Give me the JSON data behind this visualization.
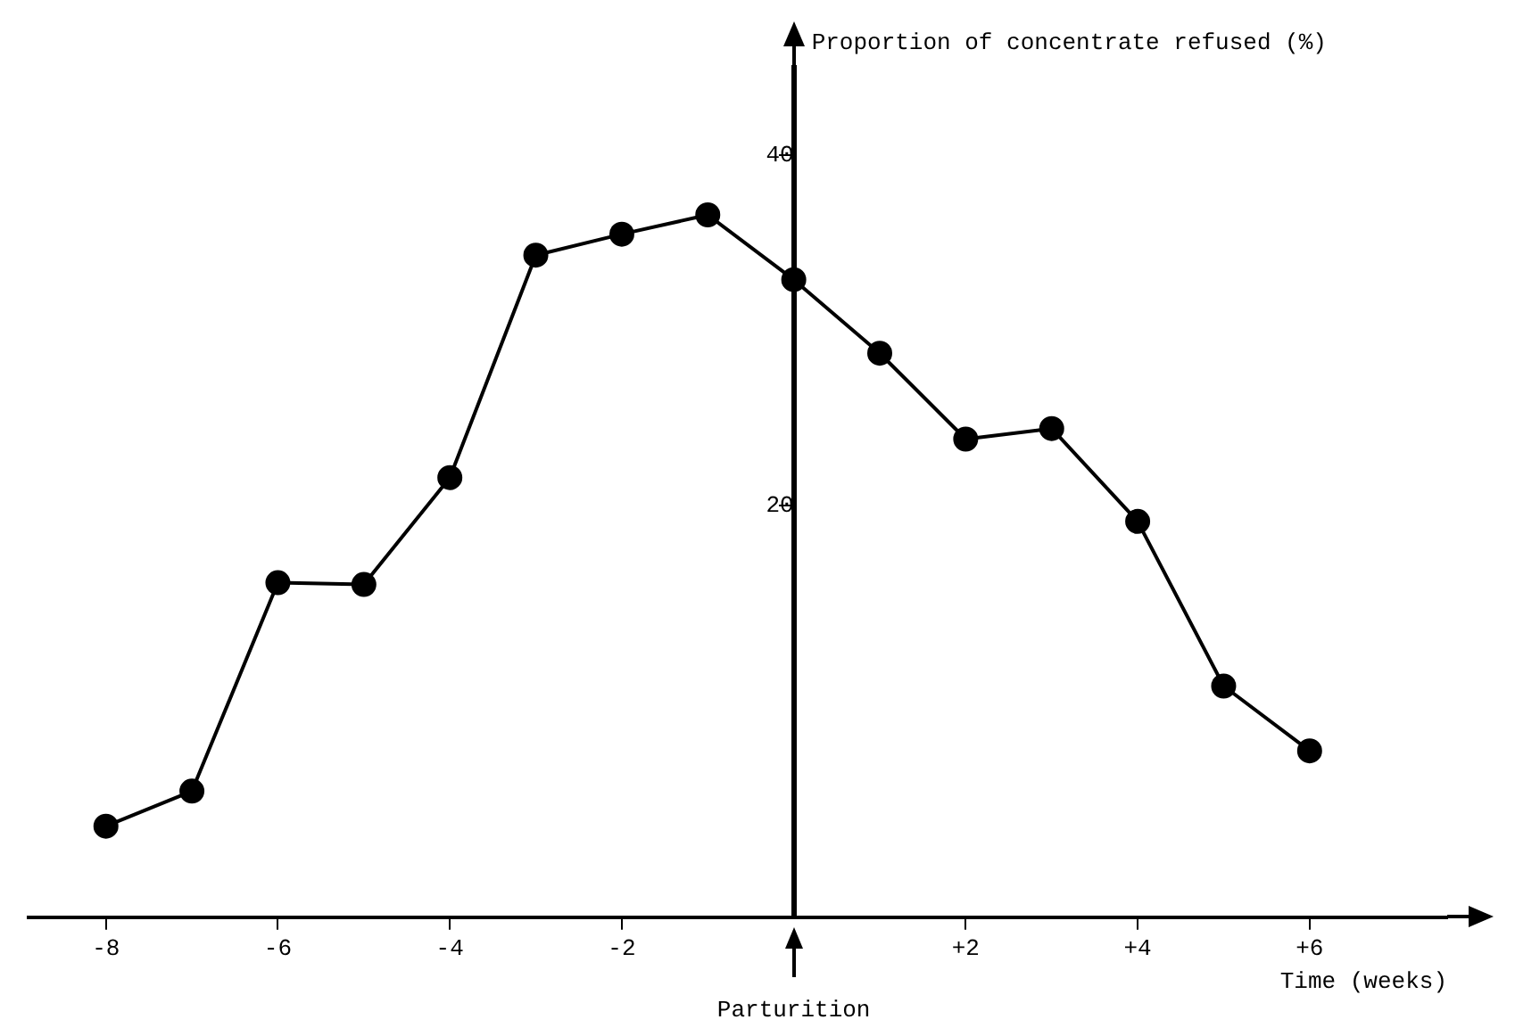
{
  "chart_data": {
    "type": "line",
    "xlabel": "Time (weeks)",
    "ylabel": "Proportion of concentrate refused (%)",
    "x": [
      -8,
      -7,
      -6,
      -5,
      -4,
      -3,
      -2,
      -1,
      0,
      1,
      2,
      3,
      4,
      5,
      6
    ],
    "series": [
      {
        "color": "#000000",
        "values": [
          1.7,
          3.7,
          15.6,
          15.5,
          21.6,
          34.3,
          35.5,
          36.6,
          32.9,
          28.7,
          23.8,
          24.4,
          19.1,
          9.7,
          6.0
        ]
      }
    ],
    "xlim": [
      -8.9,
      7.6
    ],
    "ylim": [
      -3.5,
      45
    ],
    "xticks": [
      -8,
      -6,
      -4,
      -2,
      {
        "value": 2,
        "label": "+2"
      },
      {
        "value": 4,
        "label": "+4"
      },
      {
        "value": 6,
        "label": "+6"
      }
    ],
    "yticks": [
      20,
      40
    ],
    "annotations": [
      "Parturition"
    ],
    "grid": false,
    "legend": false,
    "marker": "circle",
    "line_style": "solid"
  }
}
